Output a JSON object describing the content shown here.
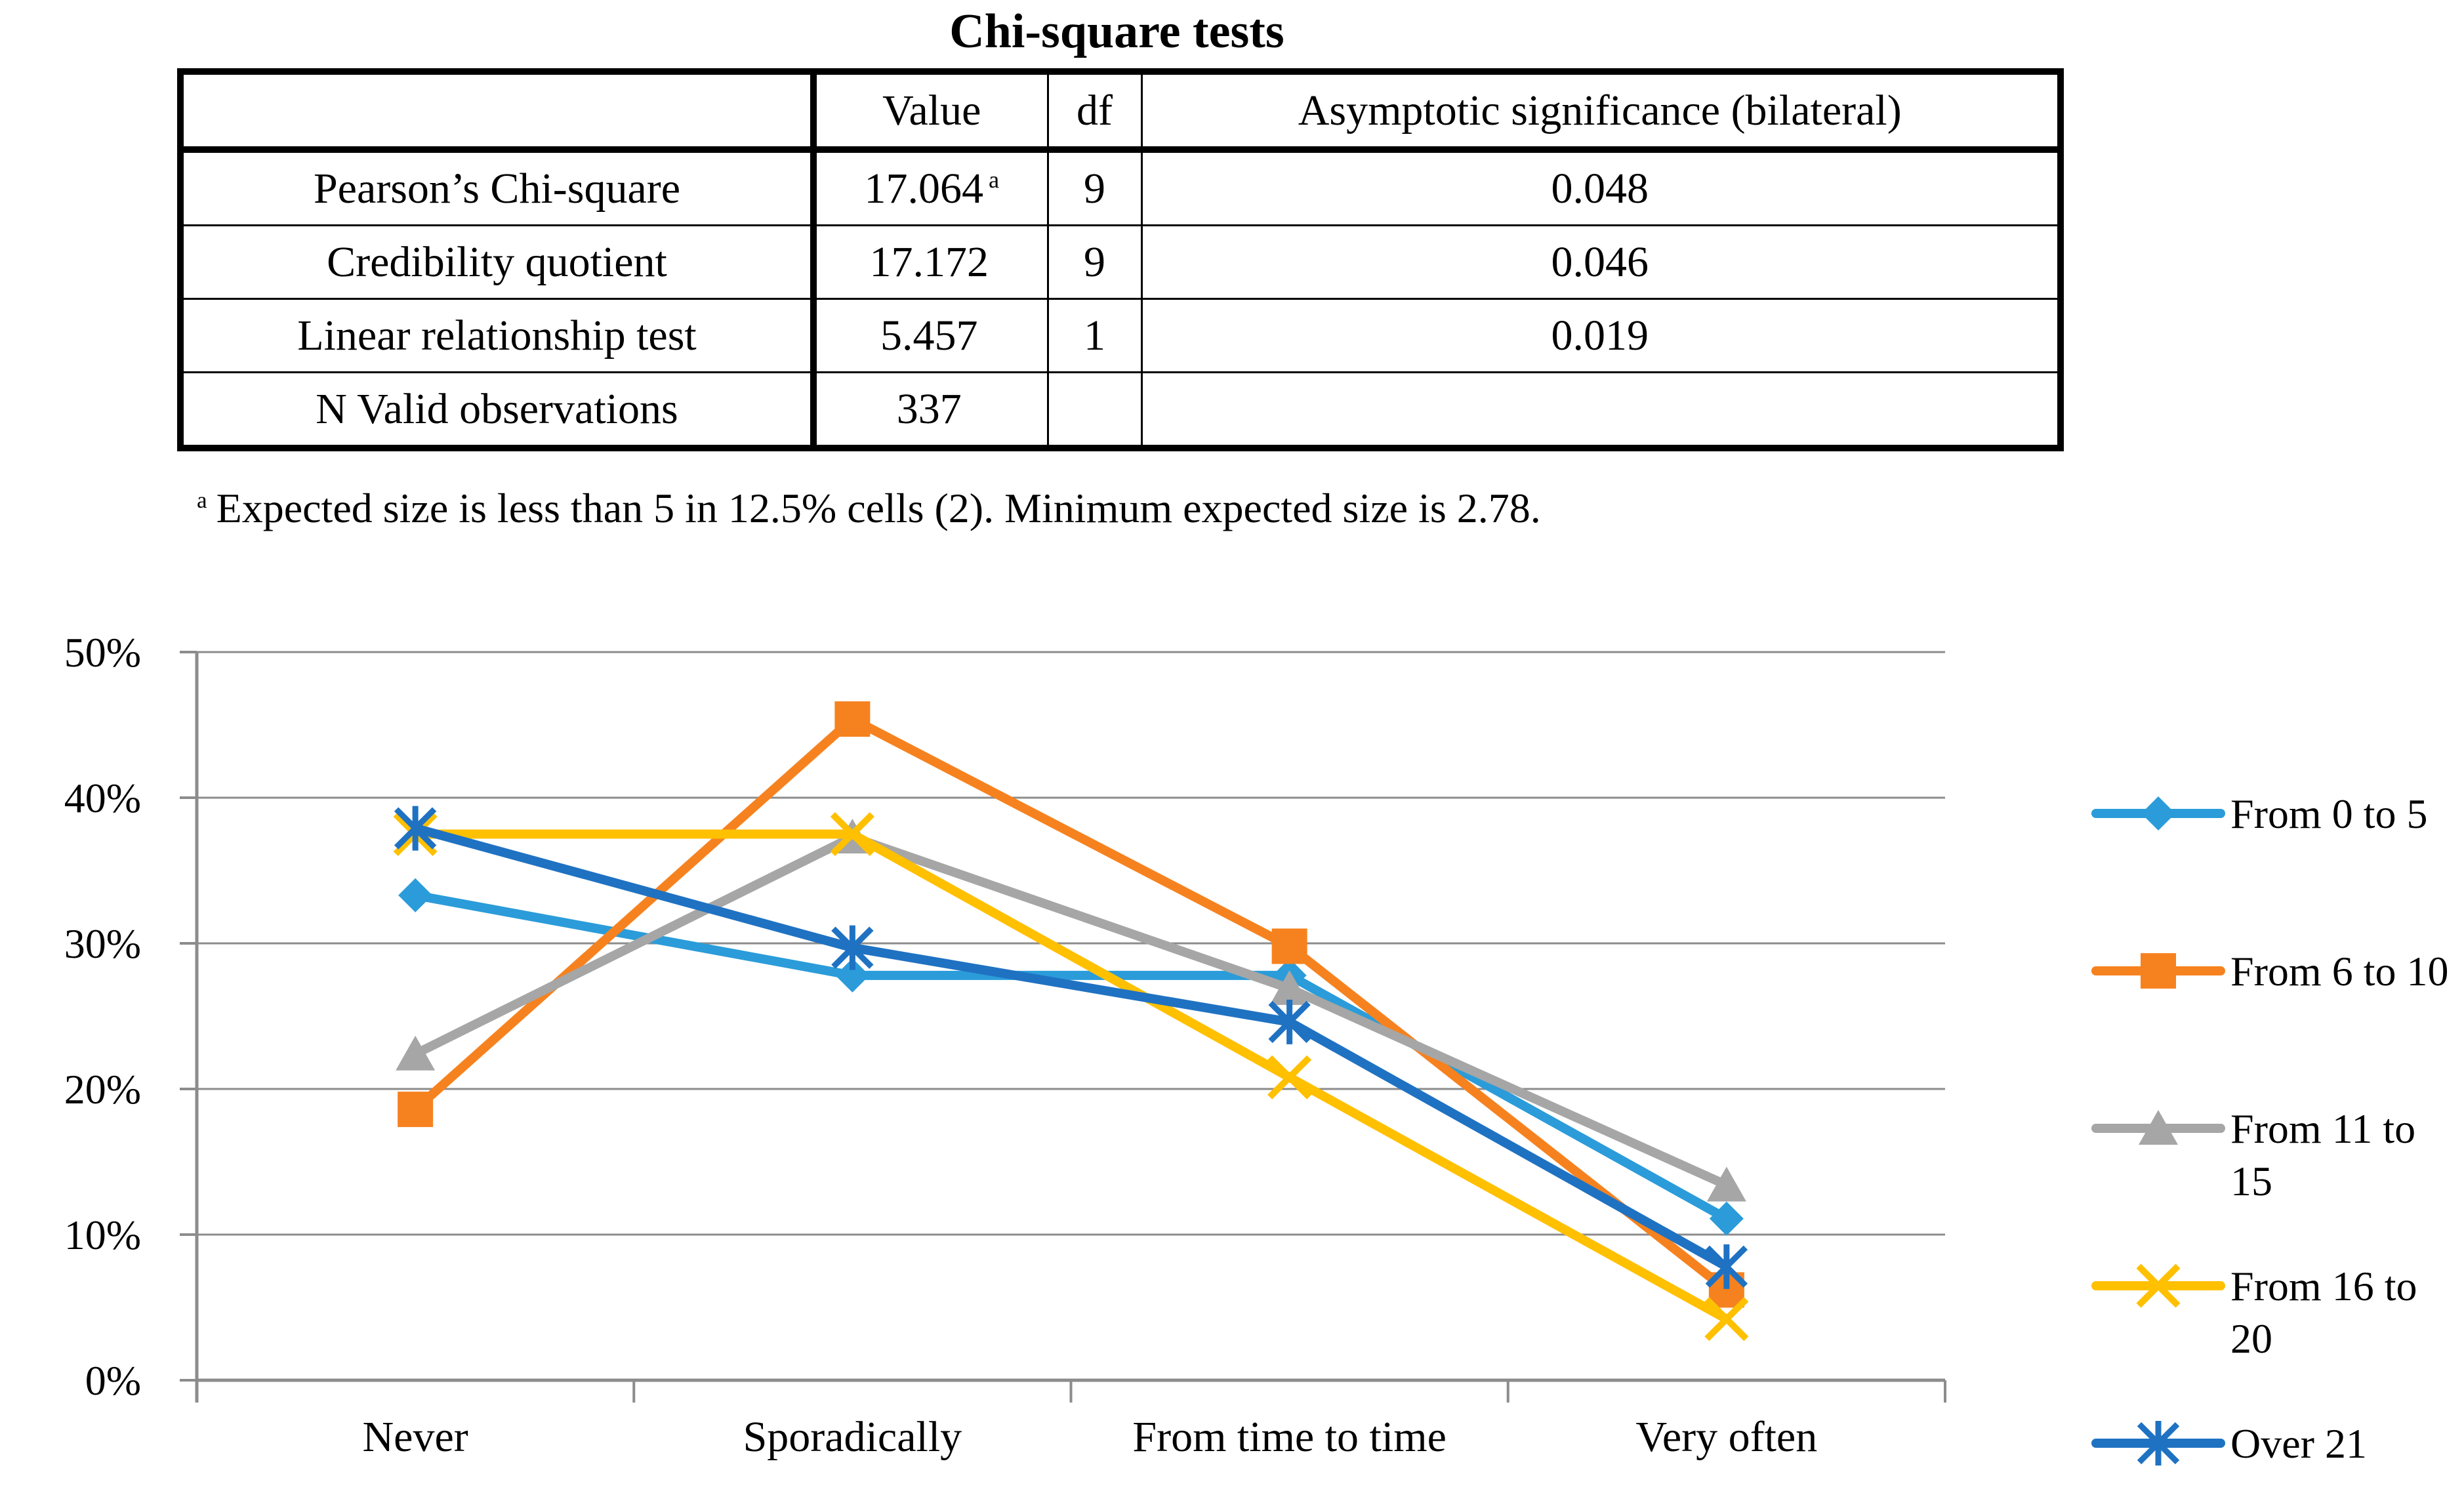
{
  "table": {
    "title": "Chi-square tests",
    "headers": [
      "",
      "Value",
      "df",
      "Asymptotic significance (bilateral)"
    ],
    "rows": [
      {
        "label": "Pearson’s Chi-square",
        "value": "17.064",
        "value_note": "a",
        "df": "9",
        "sig": "0.048"
      },
      {
        "label": "Credibility quotient",
        "value": "17.172",
        "value_note": "",
        "df": "9",
        "sig": "0.046"
      },
      {
        "label": "Linear relationship test",
        "value": "5.457",
        "value_note": "",
        "df": "1",
        "sig": "0.019"
      },
      {
        "label": "N Valid observations",
        "value": "337",
        "value_note": "",
        "df": "",
        "sig": ""
      }
    ],
    "footnote": {
      "marker": "a",
      "text": "Expected size is less than 5 in 12.5% cells (2). Minimum expected size is 2.78."
    }
  },
  "chart_data": {
    "type": "line",
    "title": "",
    "xlabel": "",
    "ylabel": "",
    "categories": [
      "Never",
      "Sporadically",
      "From time to time",
      "Very often"
    ],
    "series": [
      {
        "name": "From 0 to 5",
        "marker": "diamond",
        "color": "#2B9CD9",
        "values": [
          33.3,
          27.8,
          27.8,
          11.1
        ]
      },
      {
        "name": "From 6 to 10",
        "marker": "square",
        "color": "#F6821F",
        "values": [
          18.6,
          45.4,
          29.8,
          6.2
        ]
      },
      {
        "name": "From 11 to 15",
        "marker": "triangle",
        "color": "#A6A6A6",
        "values": [
          22.4,
          37.3,
          26.9,
          13.4
        ]
      },
      {
        "name": "From 16 to 20",
        "marker": "x",
        "color": "#FFC000",
        "values": [
          37.5,
          37.5,
          20.8,
          4.2
        ]
      },
      {
        "name": "Over 21",
        "marker": "asterisk",
        "color": "#1F72C2",
        "values": [
          37.9,
          29.7,
          24.6,
          7.8
        ]
      }
    ],
    "ylim": [
      0,
      50
    ],
    "ytick_step": 10,
    "ytick_labels": [
      "0%",
      "10%",
      "20%",
      "30%",
      "40%",
      "50%"
    ],
    "grid": true,
    "grid_color": "#8C8C8C",
    "legend_position": "right"
  }
}
